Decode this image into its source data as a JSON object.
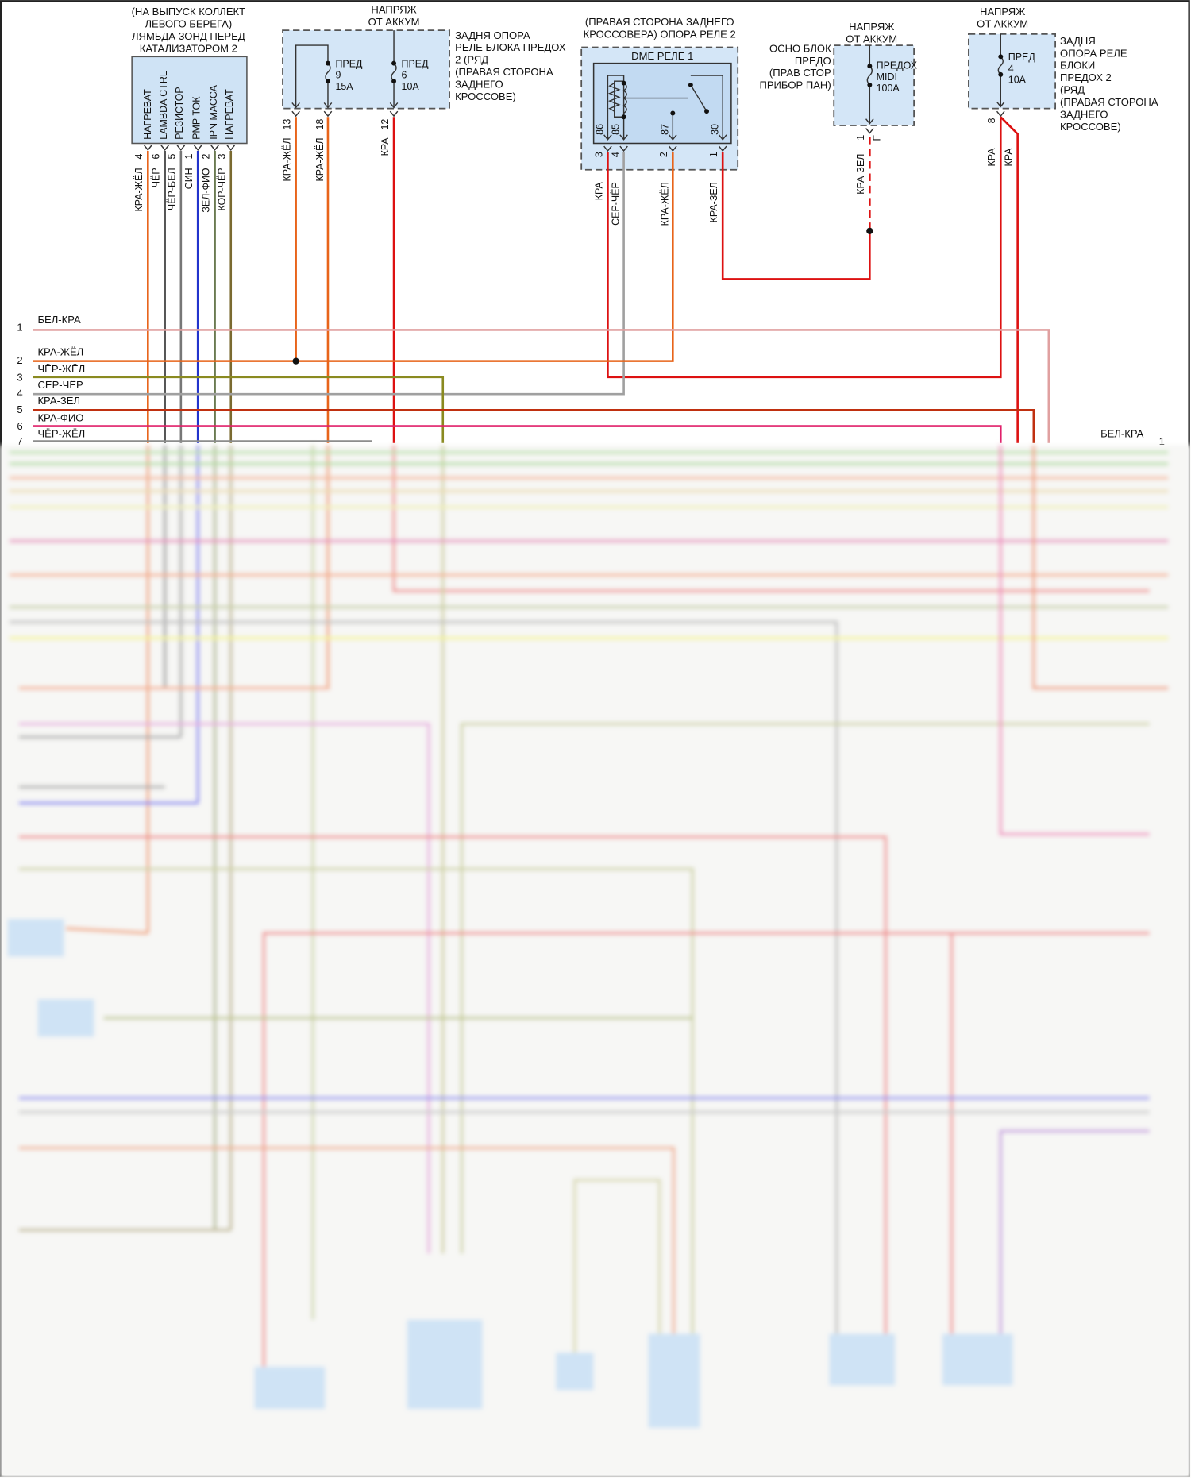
{
  "lambda_sensor": {
    "title": [
      "(НА ВЫПУСК КОЛЛЕКТ",
      "ЛЕВОГО БЕРЕГА)",
      "ЛЯМБДА ЗОНД ПЕРЕД",
      "КАТАЛИЗАТОРОМ 2"
    ],
    "pins": [
      {
        "name": "НАГРЕВАТ",
        "pin": "4",
        "wire": "КРА-ЖЁЛ"
      },
      {
        "name": "LAMBDA CTRL",
        "pin": "6",
        "wire": "ЧЁР"
      },
      {
        "name": "РЕЗИСТОР",
        "pin": "5",
        "wire": "ЧЁР-БЕЛ"
      },
      {
        "name": "PMP ТОК",
        "pin": "1",
        "wire": "СИН"
      },
      {
        "name": "IPN МАССА",
        "pin": "2",
        "wire": "ЗЕЛ-ФИО"
      },
      {
        "name": "НАГРЕВАТ",
        "pin": "3",
        "wire": "КОР-ЧЁР"
      }
    ]
  },
  "fuse_block_rear_1": {
    "supply": [
      "НАПРЯЖ",
      "ОТ АККУМ"
    ],
    "location": [
      "ЗАДНЯ ОПОРА",
      "РЕЛЕ БЛОКА ПРЕДОХ",
      "2 (РЯД",
      "(ПРАВАЯ СТОРОНА",
      "ЗАДНЕГО",
      "КРОССОВЕ)"
    ],
    "fuses": [
      {
        "label": "ПРЕД",
        "number": "9",
        "rating": "15А"
      },
      {
        "label": "ПРЕД",
        "number": "6",
        "rating": "10А"
      }
    ],
    "pins": [
      {
        "pin": "13",
        "wire": "КРА-ЖЁЛ"
      },
      {
        "pin": "18",
        "wire": "КРА-ЖЁЛ"
      },
      {
        "pin": "12",
        "wire": "КРА"
      }
    ]
  },
  "dme_relay": {
    "location": [
      "(ПРАВАЯ СТОРОНА ЗАДНЕГО",
      "КРОССОВЕРА) ОПОРА РЕЛЕ 2"
    ],
    "name": "DME РЕЛЕ 1",
    "terminals": [
      "86",
      "85",
      "87",
      "30"
    ],
    "pins": [
      {
        "pin": "3",
        "wire": "КРА"
      },
      {
        "pin": "4",
        "wire": "СЕР-ЧЁР"
      },
      {
        "pin": "2",
        "wire": "КРА-ЖЁЛ"
      },
      {
        "pin": "1",
        "wire": "КРА-ЗЕЛ"
      }
    ]
  },
  "main_fuse_box": {
    "supply": [
      "НАПРЯЖ",
      "ОТ АККУМ"
    ],
    "location": [
      "ОСНО БЛОК",
      "ПРЕДО",
      "(ПРАВ СТОР",
      "ПРИБОР ПАН)"
    ],
    "fuse": {
      "label": "ПРЕДОХ",
      "number": "MIDI",
      "rating": "100А"
    },
    "pin": "1",
    "connector": "F",
    "wire": "КРА-ЗЕЛ"
  },
  "fuse_block_rear_2": {
    "supply": [
      "НАПРЯЖ",
      "ОТ АККУМ"
    ],
    "location": [
      "ЗАДНЯ",
      "ОПОРА РЕЛЕ",
      "БЛОКИ",
      "ПРЕДОХ 2",
      "(РЯД",
      "(ПРАВАЯ СТОРОНА",
      "ЗАДНЕГО",
      "КРОССОВЕ)"
    ],
    "fuse": {
      "label": "ПРЕД",
      "number": "4",
      "rating": "10А"
    },
    "pin": "8",
    "wires": [
      "КРА",
      "КРА"
    ]
  },
  "harness": {
    "left": [
      {
        "num": "1",
        "wire": "БЕЛ-КРА"
      },
      {
        "num": "2",
        "wire": "КРА-ЖЁЛ"
      },
      {
        "num": "3",
        "wire": "ЧЁР-ЖЁЛ"
      },
      {
        "num": "4",
        "wire": "СЕР-ЧЁР"
      },
      {
        "num": "5",
        "wire": "КРА-ЗЕЛ"
      },
      {
        "num": "6",
        "wire": "КРА-ФИО"
      },
      {
        "num": "7",
        "wire": "ЧЁР-ЖЁЛ"
      }
    ],
    "right": [
      {
        "num": "1",
        "wire": "БЕЛ-КРА"
      }
    ]
  },
  "colors": {
    "component_fill": "#cfe3f5",
    "red": "#dd1111",
    "red_yellow": "#e8641a",
    "black": "#555555",
    "blue": "#2233cc",
    "grey": "#a0a0a0",
    "pink": "#e0206a",
    "white_red": "#e0a0a0"
  }
}
